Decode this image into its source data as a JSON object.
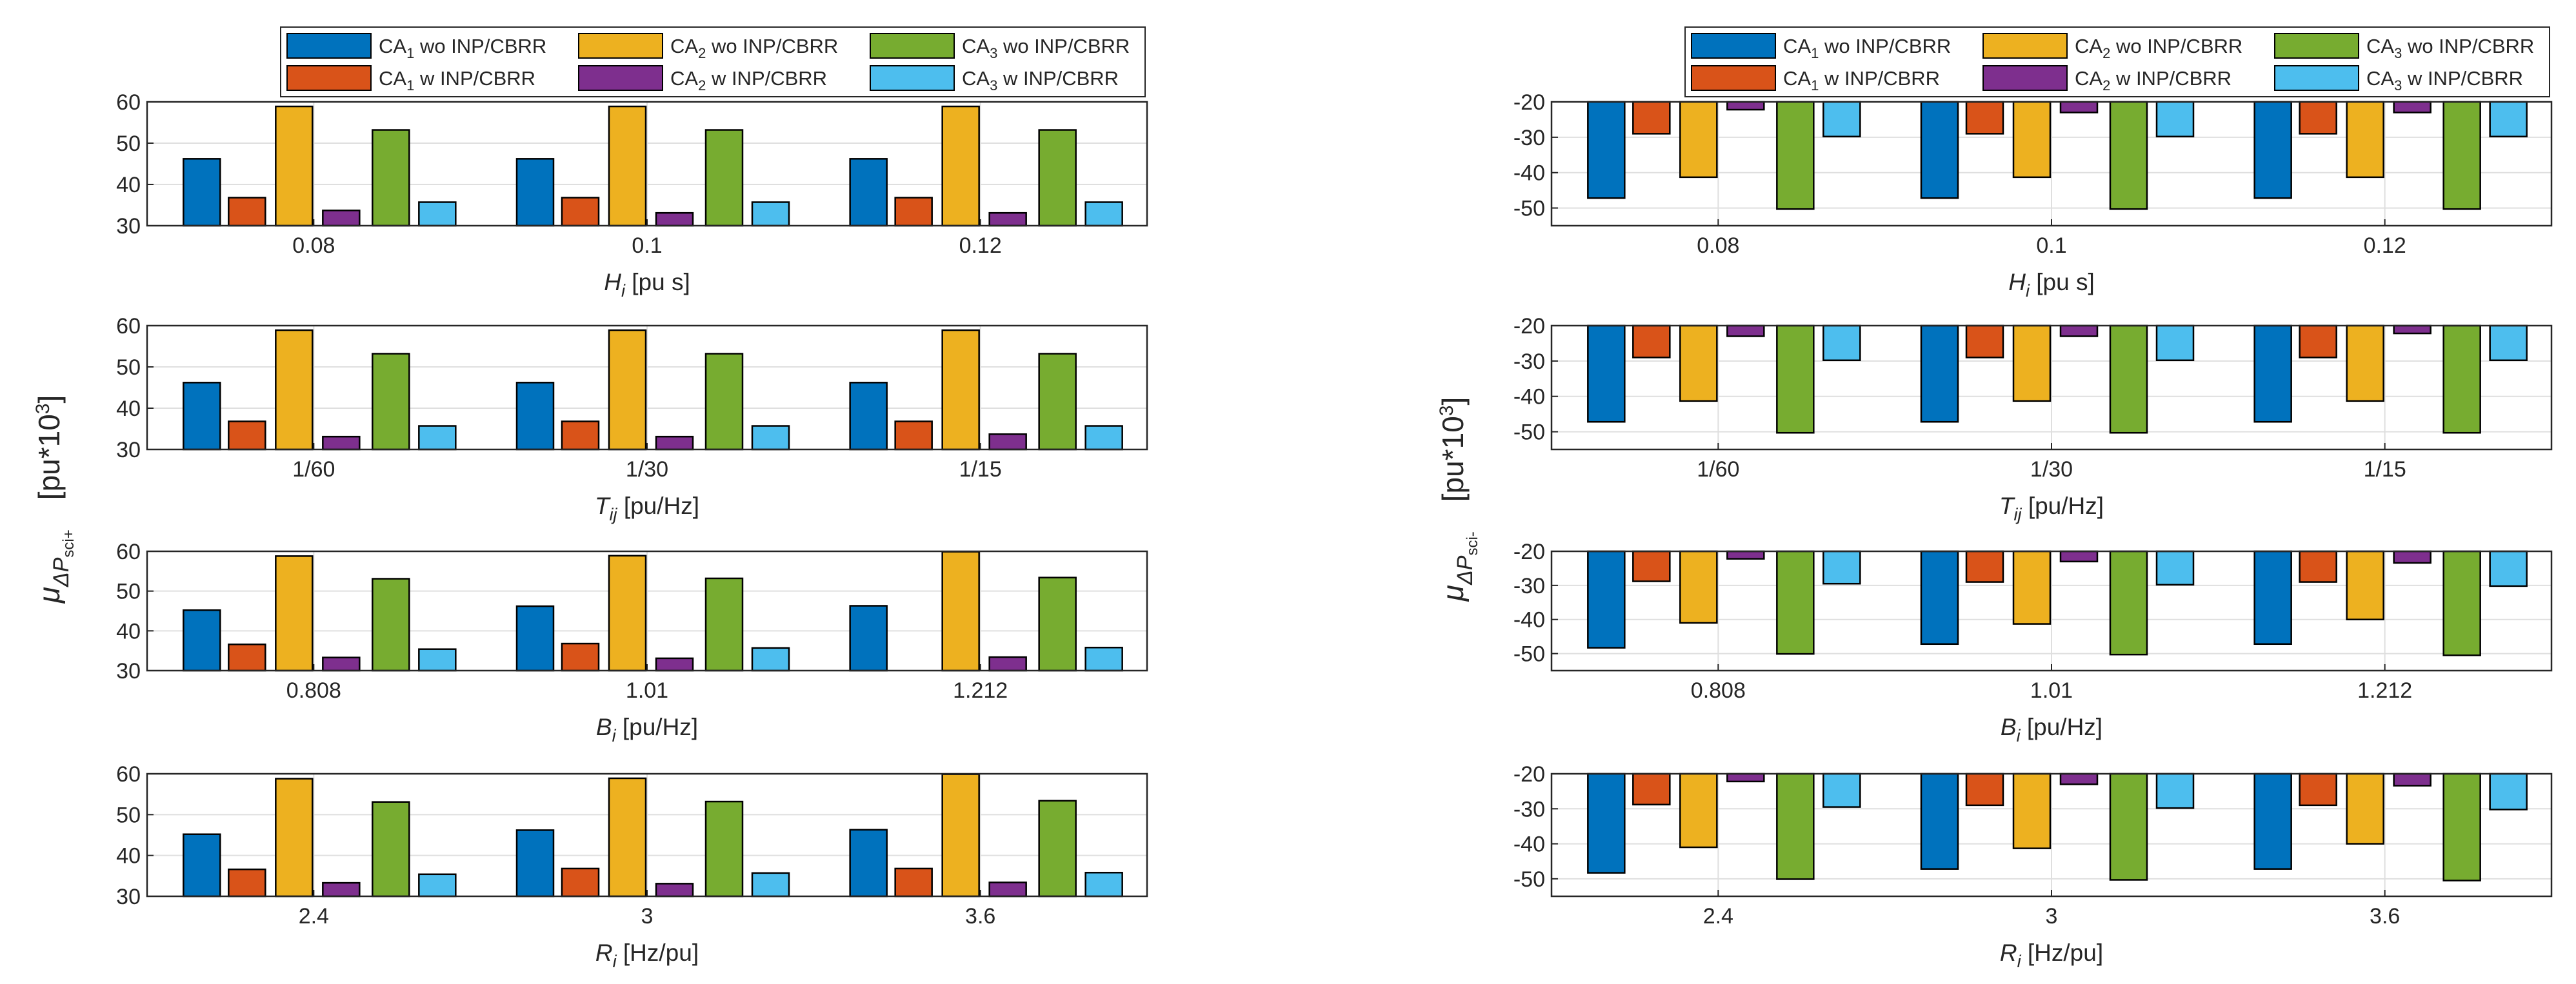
{
  "chart_data": {
    "type": "bar",
    "series": [
      {
        "name": "CA₁ wo INP/CBRR",
        "sub": "1",
        "label_pre": "CA",
        "label_post": " wo INP/CBRR",
        "color": "#0072BD"
      },
      {
        "name": "CA₁ w INP/CBRR",
        "sub": "1",
        "label_pre": "CA",
        "label_post": " w INP/CBRR",
        "color": "#D95319"
      },
      {
        "name": "CA₂ wo INP/CBRR",
        "sub": "2",
        "label_pre": "CA",
        "label_post": " wo INP/CBRR",
        "color": "#EDB120"
      },
      {
        "name": "CA₂ w INP/CBRR",
        "sub": "2",
        "label_pre": "CA",
        "label_post": " w INP/CBRR",
        "color": "#7E2F8E"
      },
      {
        "name": "CA₃ wo INP/CBRR",
        "sub": "3",
        "label_pre": "CA",
        "label_post": " wo INP/CBRR",
        "color": "#77AC30"
      },
      {
        "name": "CA₃ w INP/CBRR",
        "sub": "3",
        "label_pre": "CA",
        "label_post": " w INP/CBRR",
        "color": "#4DBEEE"
      }
    ],
    "groups": [
      {
        "name": "left",
        "ylabel_main": "μ",
        "ylabel_delta": "ΔP",
        "ylabel_sub": "sci+",
        "ylabel_unit": "[pu*10",
        "ylabel_exp": "3",
        "ylabel_close": "]",
        "legend_placement": "top",
        "panels": [
          {
            "ylim": [
              30,
              60
            ],
            "yticks": [
              "30",
              "40",
              "50",
              "60"
            ],
            "xlabel_var": "H",
            "xlabel_sub": "i",
            "xlabel_unit": " [pu s]",
            "categories": [
              "0.08",
              "0.1",
              "0.12"
            ],
            "values": [
              [
                46.2,
                36.8,
                58.9,
                33.7,
                53.2,
                35.7
              ],
              [
                46.2,
                36.8,
                58.9,
                33.1,
                53.2,
                35.7
              ],
              [
                46.2,
                36.8,
                58.9,
                33.1,
                53.2,
                35.7
              ]
            ]
          },
          {
            "ylim": [
              30,
              60
            ],
            "yticks": [
              "30",
              "40",
              "50",
              "60"
            ],
            "xlabel_var": "T",
            "xlabel_sub": "ij",
            "xlabel_unit": " [pu/Hz]",
            "categories": [
              "1/60",
              "1/30",
              "1/15"
            ],
            "values": [
              [
                46.2,
                36.8,
                58.9,
                33.1,
                53.2,
                35.7
              ],
              [
                46.2,
                36.8,
                58.9,
                33.1,
                53.2,
                35.7
              ],
              [
                46.2,
                36.8,
                58.9,
                33.7,
                53.2,
                35.7
              ]
            ]
          },
          {
            "ylim": [
              30,
              60
            ],
            "yticks": [
              "30",
              "40",
              "50",
              "60"
            ],
            "xlabel_var": "B",
            "xlabel_sub": "i",
            "xlabel_unit": " [pu/Hz]",
            "categories": [
              "0.808",
              "1.01",
              "1.212"
            ],
            "values": [
              [
                45.2,
                36.6,
                58.8,
                33.3,
                53.1,
                35.4
              ],
              [
                46.2,
                36.8,
                58.9,
                33.1,
                53.2,
                35.7
              ],
              [
                46.3,
                30,
                59.9,
                33.4,
                53.4,
                35.8
              ]
            ]
          },
          {
            "ylim": [
              30,
              60
            ],
            "yticks": [
              "30",
              "40",
              "50",
              "60"
            ],
            "xlabel_var": "R",
            "xlabel_sub": "i",
            "xlabel_unit": " [Hz/pu]",
            "categories": [
              "2.4",
              "3",
              "3.6"
            ],
            "values": [
              [
                45.2,
                36.6,
                58.8,
                33.3,
                53.1,
                35.4
              ],
              [
                46.2,
                36.8,
                58.9,
                33.1,
                53.2,
                35.7
              ],
              [
                46.3,
                36.8,
                59.9,
                33.4,
                53.4,
                35.8
              ]
            ]
          }
        ]
      },
      {
        "name": "right",
        "ylabel_main": "μ",
        "ylabel_delta": "ΔP",
        "ylabel_sub": "sci-",
        "ylabel_unit": "[pu*10",
        "ylabel_exp": "3",
        "ylabel_close": "]",
        "legend_placement": "top",
        "panels": [
          {
            "ylim": [
              -55,
              -20
            ],
            "yticks": [
              "-50",
              "-40",
              "-30",
              "-20"
            ],
            "xlabel_var": "H",
            "xlabel_sub": "i",
            "xlabel_unit": " [pu s]",
            "categories": [
              "0.08",
              "0.1",
              "0.12"
            ],
            "values": [
              [
                -47.2,
                -29,
                -41.3,
                -22.2,
                -50.3,
                -29.8
              ],
              [
                -47.2,
                -29,
                -41.3,
                -23,
                -50.3,
                -29.8
              ],
              [
                -47.2,
                -29,
                -41.3,
                -23,
                -50.3,
                -29.8
              ]
            ]
          },
          {
            "ylim": [
              -55,
              -20
            ],
            "yticks": [
              "-50",
              "-40",
              "-30",
              "-20"
            ],
            "xlabel_var": "T",
            "xlabel_sub": "ij",
            "xlabel_unit": " [pu/Hz]",
            "categories": [
              "1/60",
              "1/30",
              "1/15"
            ],
            "values": [
              [
                -47.2,
                -29,
                -41.3,
                -23,
                -50.3,
                -29.8
              ],
              [
                -47.2,
                -29,
                -41.3,
                -23,
                -50.3,
                -29.8
              ],
              [
                -47.2,
                -29,
                -41.3,
                -22.2,
                -50.3,
                -29.8
              ]
            ]
          },
          {
            "ylim": [
              -55,
              -20
            ],
            "yticks": [
              "-50",
              "-40",
              "-30",
              "-20"
            ],
            "xlabel_var": "B",
            "xlabel_sub": "i",
            "xlabel_unit": " [pu/Hz]",
            "categories": [
              "0.808",
              "1.01",
              "1.212"
            ],
            "values": [
              [
                -48.3,
                -28.8,
                -41,
                -22.2,
                -50.1,
                -29.5
              ],
              [
                -47.2,
                -29,
                -41.3,
                -23,
                -50.3,
                -29.8
              ],
              [
                -47.2,
                -29,
                -40,
                -23.4,
                -50.5,
                -30.2
              ]
            ]
          },
          {
            "ylim": [
              -55,
              -20
            ],
            "yticks": [
              "-50",
              "-40",
              "-30",
              "-20"
            ],
            "xlabel_var": "R",
            "xlabel_sub": "i",
            "xlabel_unit": " [Hz/pu]",
            "categories": [
              "2.4",
              "3",
              "3.6"
            ],
            "values": [
              [
                -48.3,
                -28.8,
                -41,
                -22.2,
                -50.1,
                -29.5
              ],
              [
                -47.2,
                -29,
                -41.3,
                -23,
                -50.3,
                -29.8
              ],
              [
                -47.2,
                -29,
                -40,
                -23.4,
                -50.5,
                -30.2
              ]
            ]
          }
        ]
      }
    ],
    "grid": true
  }
}
